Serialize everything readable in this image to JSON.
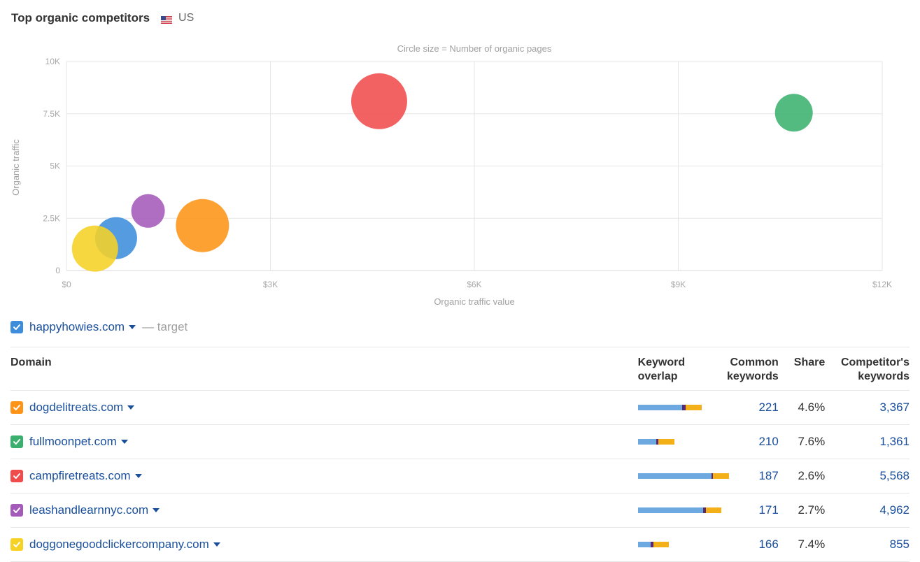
{
  "header": {
    "title": "Top organic competitors",
    "region": "US"
  },
  "chart_data": {
    "type": "bubble",
    "subtitle": "Circle size = Number of organic pages",
    "xlabel": "Organic traffic value",
    "ylabel": "Organic traffic",
    "xlim": [
      0,
      12000
    ],
    "ylim": [
      0,
      10000
    ],
    "x_ticks": [
      "$0",
      "$3K",
      "$6K",
      "$9K",
      "$12K"
    ],
    "y_ticks": [
      "0",
      "2.5K",
      "5K",
      "7.5K",
      "10K"
    ],
    "grid": true,
    "points": [
      {
        "domain": "campfiretreats.com",
        "x": 4600,
        "y": 8100,
        "size": 40,
        "color": "#f04c4c"
      },
      {
        "domain": "fullmoonpet.com",
        "x": 10700,
        "y": 7550,
        "size": 27,
        "color": "#3bb06e"
      },
      {
        "domain": "dogdelitreats.com",
        "x": 2000,
        "y": 2150,
        "size": 38,
        "color": "#fe9417"
      },
      {
        "domain": "leashandlearnnyc.com",
        "x": 1200,
        "y": 2850,
        "size": 24,
        "color": "#a45ab8"
      },
      {
        "domain": "happyhowies.com",
        "x": 730,
        "y": 1550,
        "size": 30,
        "color": "#3d8ddc"
      },
      {
        "domain": "doggonegoodclickercompany.com",
        "x": 420,
        "y": 1050,
        "size": 33,
        "color": "#f6d126"
      }
    ]
  },
  "target": {
    "domain": "happyhowies.com",
    "label": "— target",
    "color": "#3d8ddc"
  },
  "table": {
    "headers": {
      "domain": "Domain",
      "overlap_1": "Keyword",
      "overlap_2": "overlap",
      "common_1": "Common",
      "common_2": "keywords",
      "share": "Share",
      "competitor_1": "Competitor's",
      "competitor_2": "keywords"
    },
    "rows": [
      {
        "domain": "dogdelitreats.com",
        "color": "#fe9417",
        "common": "221",
        "share": "4.6%",
        "competitor": "3,367",
        "overlap": {
          "a": 0.49,
          "b": 0.04,
          "c": 0.17
        }
      },
      {
        "domain": "fullmoonpet.com",
        "color": "#3bb06e",
        "common": "210",
        "share": "7.6%",
        "competitor": "1,361",
        "overlap": {
          "a": 0.2,
          "b": 0.03,
          "c": 0.17
        }
      },
      {
        "domain": "campfiretreats.com",
        "color": "#f04c4c",
        "common": "187",
        "share": "2.6%",
        "competitor": "5,568",
        "overlap": {
          "a": 0.81,
          "b": 0.02,
          "c": 0.17
        }
      },
      {
        "domain": "leashandlearnnyc.com",
        "color": "#a45ab8",
        "common": "171",
        "share": "2.7%",
        "competitor": "4,962",
        "overlap": {
          "a": 0.72,
          "b": 0.03,
          "c": 0.17
        }
      },
      {
        "domain": "doggonegoodclickercompany.com",
        "color": "#f6d126",
        "common": "166",
        "share": "7.4%",
        "competitor": "855",
        "overlap": {
          "a": 0.14,
          "b": 0.03,
          "c": 0.17
        }
      }
    ],
    "overlap_colors": {
      "a": "#6ea8e0",
      "b": "#5a2a6e",
      "c": "#f4b018"
    }
  }
}
